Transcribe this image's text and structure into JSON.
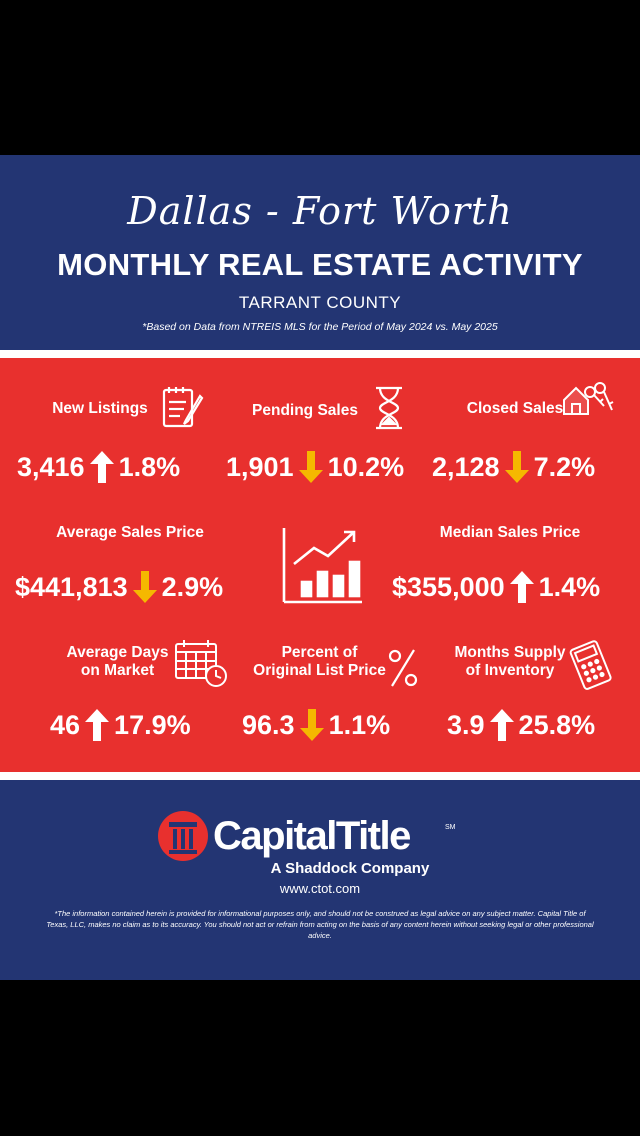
{
  "header": {
    "script_title": "Dallas - Fort Worth",
    "title": "MONTHLY REAL ESTATE ACTIVITY",
    "subtitle": "TARRANT COUNTY",
    "note": "*Based on Data from NTREIS MLS for the Period of May 2024 vs. May 2025"
  },
  "colors": {
    "navy": "#233573",
    "red": "#e8302e",
    "up": "#ffffff",
    "down": "#f5b800"
  },
  "stats": [
    {
      "label": "New Listings",
      "value": "3,416",
      "change": "1.8%",
      "direction": "up",
      "icon": "notepad-pencil-icon"
    },
    {
      "label": "Pending Sales",
      "value": "1,901",
      "change": "10.2%",
      "direction": "down",
      "icon": "hourglass-icon"
    },
    {
      "label": "Closed Sales",
      "value": "2,128",
      "change": "7.2%",
      "direction": "down",
      "icon": "house-keys-icon"
    },
    {
      "label": "Average Sales Price",
      "value": "$441,813",
      "change": "2.9%",
      "direction": "down",
      "icon": ""
    },
    {
      "label": "Median Sales Price",
      "value": "$355,000",
      "change": "1.4%",
      "direction": "up",
      "icon": ""
    },
    {
      "label": "Average Days on Market",
      "value": "46",
      "change": "17.9%",
      "direction": "up",
      "icon": "calendar-clock-icon"
    },
    {
      "label": "Percent of Original List Price",
      "value": "96.3",
      "change": "1.1%",
      "direction": "down",
      "icon": "percent-icon"
    },
    {
      "label": "Months Supply of Inventory",
      "value": "3.9",
      "change": "25.8%",
      "direction": "up",
      "icon": "calculator-icon"
    }
  ],
  "center_icon": "growth-chart-icon",
  "footer": {
    "brand": "CapitalTitle",
    "brand_mark": "SM",
    "tagline": "A Shaddock Company",
    "website": "www.ctot.com",
    "disclaimer": "*The information contained herein is provided for informational purposes only, and should not be construed as legal advice on any subject matter. Capital Title of Texas, LLC, makes no claim as to its accuracy. You should not act or refrain from acting on the basis of any content herein without seeking legal or other professional advice."
  }
}
